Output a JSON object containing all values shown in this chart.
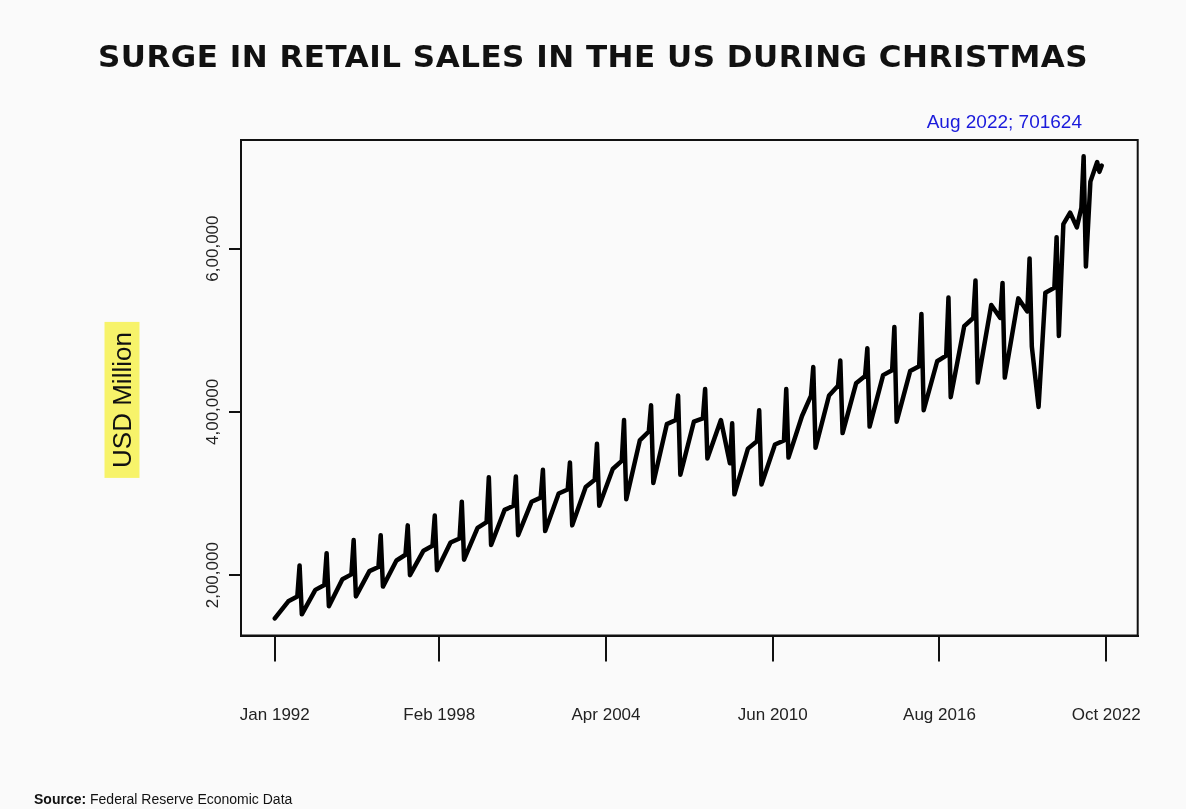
{
  "chart_data": {
    "type": "line",
    "title": "SURGE IN RETAIL SALES IN THE US DURING CHRISTMAS",
    "ylabel": "USD Million",
    "annotations": [
      "Aug 2022; 701624",
      "Source: Federal Reserve Economic Data"
    ],
    "xlim": [
      "1990-10",
      "2023-12"
    ],
    "ylim": [
      126000,
      733000
    ],
    "xticks": [
      {
        "value": "1992-01",
        "label": "Jan 1992"
      },
      {
        "value": "1998-02",
        "label": "Feb 1998"
      },
      {
        "value": "2004-04",
        "label": "Apr 2004"
      },
      {
        "value": "2010-06",
        "label": "Jun 2010"
      },
      {
        "value": "2016-08",
        "label": "Aug 2016"
      },
      {
        "value": "2022-10",
        "label": "Oct 2022"
      }
    ],
    "yticks": [
      {
        "value": 200000,
        "label": "2,00,000"
      },
      {
        "value": 400000,
        "label": "4,00,000"
      },
      {
        "value": 600000,
        "label": "6,00,000"
      }
    ],
    "grid": false,
    "legend": false,
    "marker": "none",
    "line_style": "solid",
    "series": [
      {
        "color": "#000000",
        "x": [
          "1992-01",
          "1992-07",
          "1992-11",
          "1992-12",
          "1993-01",
          "1993-07",
          "1993-11",
          "1993-12",
          "1994-01",
          "1994-07",
          "1994-11",
          "1994-12",
          "1995-01",
          "1995-07",
          "1995-11",
          "1995-12",
          "1996-01",
          "1996-07",
          "1996-11",
          "1996-12",
          "1997-01",
          "1997-07",
          "1997-11",
          "1997-12",
          "1998-01",
          "1998-07",
          "1998-11",
          "1998-12",
          "1999-01",
          "1999-07",
          "1999-11",
          "1999-12",
          "2000-01",
          "2000-07",
          "2000-11",
          "2000-12",
          "2001-01",
          "2001-07",
          "2001-11",
          "2001-12",
          "2002-01",
          "2002-07",
          "2002-11",
          "2002-12",
          "2003-01",
          "2003-07",
          "2003-11",
          "2003-12",
          "2004-01",
          "2004-07",
          "2004-11",
          "2004-12",
          "2005-01",
          "2005-07",
          "2005-11",
          "2005-12",
          "2006-01",
          "2006-07",
          "2006-11",
          "2006-12",
          "2007-01",
          "2007-07",
          "2007-11",
          "2007-12",
          "2008-01",
          "2008-07",
          "2008-11",
          "2008-12",
          "2009-01",
          "2009-07",
          "2009-11",
          "2009-12",
          "2010-01",
          "2010-07",
          "2010-11",
          "2010-12",
          "2011-01",
          "2011-07",
          "2011-11",
          "2011-12",
          "2012-01",
          "2012-07",
          "2012-11",
          "2012-12",
          "2013-01",
          "2013-07",
          "2013-11",
          "2013-12",
          "2014-01",
          "2014-07",
          "2014-11",
          "2014-12",
          "2015-01",
          "2015-07",
          "2015-11",
          "2015-12",
          "2016-01",
          "2016-07",
          "2016-11",
          "2016-12",
          "2017-01",
          "2017-07",
          "2017-11",
          "2017-12",
          "2018-01",
          "2018-07",
          "2018-11",
          "2018-12",
          "2019-01",
          "2019-07",
          "2019-11",
          "2019-12",
          "2020-01",
          "2020-04",
          "2020-07",
          "2020-11",
          "2020-12",
          "2021-01",
          "2021-03",
          "2021-06",
          "2021-09",
          "2021-11",
          "2021-12",
          "2022-01",
          "2022-03",
          "2022-06",
          "2022-07",
          "2022-08"
        ],
        "values": [
          147000,
          168000,
          174000,
          212000,
          152000,
          182000,
          188000,
          227000,
          162000,
          195000,
          201000,
          243000,
          174000,
          205000,
          210000,
          249000,
          186000,
          218000,
          225000,
          261000,
          200000,
          230000,
          236000,
          273000,
          206000,
          240000,
          245000,
          290000,
          219000,
          258000,
          265000,
          320000,
          237000,
          280000,
          285000,
          321000,
          249000,
          290000,
          295000,
          329000,
          254000,
          300000,
          305000,
          338000,
          261000,
          308000,
          317000,
          361000,
          285000,
          330000,
          340000,
          390000,
          293000,
          365000,
          376000,
          408000,
          313000,
          385000,
          390000,
          420000,
          323000,
          388000,
          392000,
          428000,
          343000,
          390000,
          337000,
          386000,
          299000,
          355000,
          364000,
          402000,
          311000,
          360000,
          365000,
          428000,
          344000,
          395000,
          420000,
          455000,
          356000,
          420000,
          432000,
          463000,
          374000,
          435000,
          444000,
          478000,
          382000,
          445000,
          451000,
          504000,
          388000,
          450000,
          456000,
          520000,
          402000,
          462000,
          469000,
          540000,
          418000,
          505000,
          515000,
          561000,
          436000,
          531000,
          515000,
          558000,
          442000,
          539000,
          523000,
          588000,
          480000,
          406000,
          546000,
          552000,
          614000,
          493000,
          630000,
          644000,
          626000,
          650000,
          713000,
          578000,
          682000,
          706000,
          694000,
          701624
        ]
      }
    ]
  }
}
